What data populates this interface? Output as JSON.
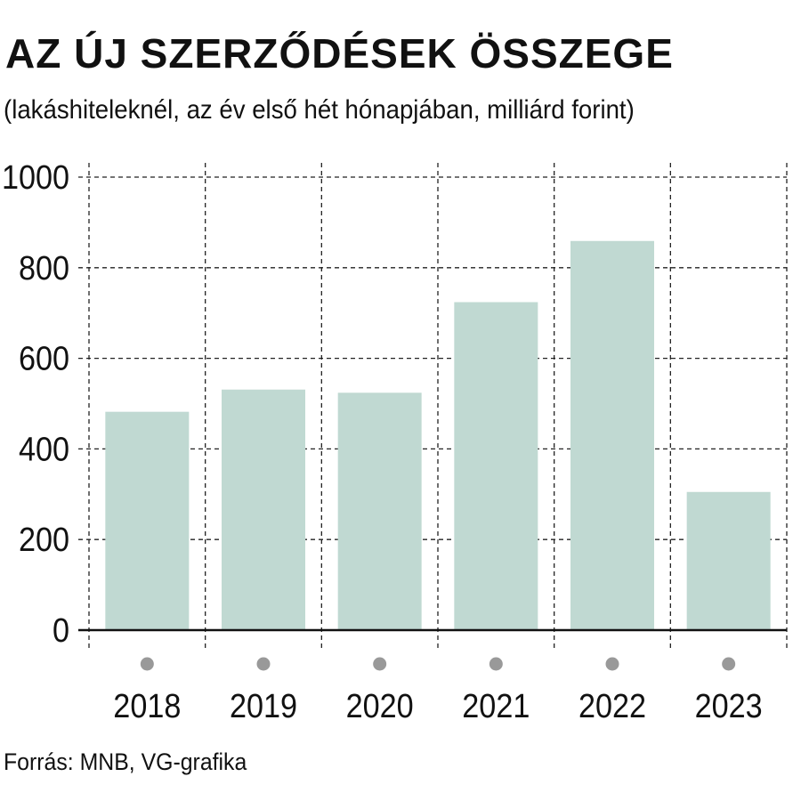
{
  "chart_data": {
    "type": "bar",
    "title": "AZ ÚJ SZERZŐDÉSEK ÖSSZEGE",
    "subtitle": "(lakáshiteleknél, az év első hét hónapjában, milliárd forint)",
    "categories": [
      "2018",
      "2019",
      "2020",
      "2021",
      "2022",
      "2023"
    ],
    "values": [
      482,
      531,
      524,
      724,
      859,
      305
    ],
    "yticks": [
      0,
      200,
      400,
      600,
      800,
      1000
    ],
    "ylim": [
      0,
      1000
    ],
    "grid": true,
    "bar_color": "#c0d9d2",
    "marker_color": "#999999",
    "source": "Forrás: MNB, VG-grafika"
  }
}
